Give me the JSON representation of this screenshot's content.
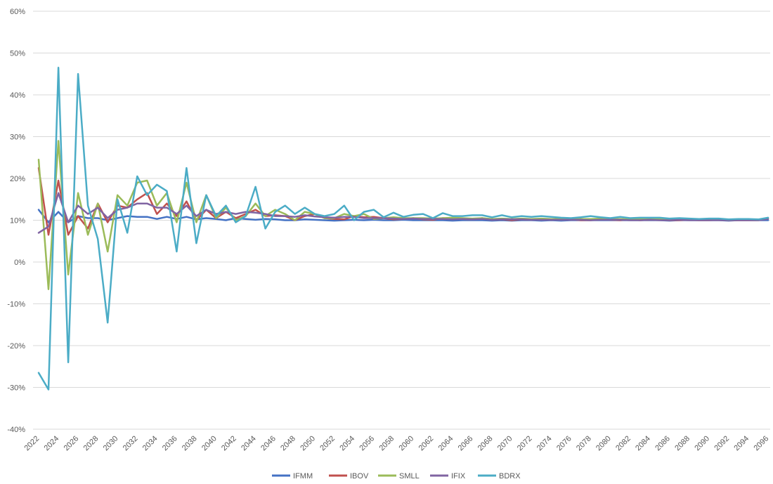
{
  "chart_data": {
    "type": "line",
    "title": "",
    "xlabel": "",
    "ylabel": "",
    "ylim": [
      -40,
      60
    ],
    "y_ticks": [
      "60%",
      "50%",
      "40%",
      "30%",
      "20%",
      "10%",
      "0%",
      "-10%",
      "-20%",
      "-30%",
      "-40%"
    ],
    "y_tick_values": [
      60,
      50,
      40,
      30,
      20,
      10,
      0,
      -10,
      -20,
      -30,
      -40
    ],
    "x_tick_labels": [
      "2022",
      "2024",
      "2026",
      "2028",
      "2030",
      "2032",
      "2034",
      "2036",
      "2038",
      "2040",
      "2042",
      "2044",
      "2046",
      "2048",
      "2050",
      "2052",
      "2054",
      "2056",
      "2058",
      "2060",
      "2062",
      "2064",
      "2066",
      "2068",
      "2070",
      "2072",
      "2074",
      "2076",
      "2078",
      "2080",
      "2082",
      "2084",
      "2086",
      "2088",
      "2090",
      "2092",
      "2094",
      "2096"
    ],
    "grid": true,
    "legend_position": "bottom",
    "x_start": 2022,
    "series": [
      {
        "name": "IFMM",
        "color": "#4472C4",
        "values": [
          12.5,
          9.5,
          12,
          9.5,
          11,
          10.5,
          10.5,
          10,
          10.5,
          11,
          10.8,
          10.8,
          10.3,
          10.8,
          10.3,
          10.8,
          10.2,
          10.5,
          10.3,
          10,
          10.5,
          10.3,
          10.1,
          10.3,
          10.2,
          10,
          10,
          10.2,
          10.1,
          10,
          9.9,
          10,
          10.1,
          10,
          10.1,
          10,
          10,
          10.1,
          10,
          10,
          10,
          10,
          9.9,
          10,
          10,
          10,
          9.9,
          10,
          9.9,
          10,
          10,
          9.9,
          10,
          9.9,
          10,
          10,
          10,
          10,
          10,
          10,
          10,
          10,
          10,
          10,
          9.9,
          10,
          10,
          10,
          10,
          10,
          9.9,
          10,
          10,
          10,
          10
        ]
      },
      {
        "name": "IBOV",
        "color": "#C0504D",
        "values": [
          22.5,
          6.5,
          19.5,
          6.5,
          11,
          8,
          14,
          9.5,
          13.5,
          13,
          15,
          16.5,
          11.5,
          14,
          11,
          14.5,
          10,
          12.5,
          10.5,
          12,
          10.5,
          11.5,
          12.5,
          11,
          11.2,
          11,
          10,
          11,
          11.5,
          10.5,
          10.3,
          10.2,
          11,
          10.7,
          10.8,
          10.5,
          10.2,
          10.3,
          10.5,
          10.2,
          10.1,
          10.5,
          10.3,
          10.3,
          10.2,
          10.5,
          10.1,
          10.2,
          10,
          10.2,
          10.1,
          10.3,
          10.1,
          10.2,
          10.2,
          10,
          10,
          10.2,
          10.1,
          10,
          10.2,
          10,
          10.1,
          10.1,
          10,
          10,
          10.1,
          10,
          10,
          10.1,
          10,
          10,
          10,
          10,
          10.5
        ]
      },
      {
        "name": "SMLL",
        "color": "#9BBB59",
        "values": [
          24.5,
          -6.5,
          29,
          -3,
          16.5,
          6.5,
          14,
          2.5,
          16,
          13.5,
          19,
          19.5,
          13.5,
          16.5,
          9.5,
          19,
          9.5,
          16,
          10.5,
          13,
          10,
          11,
          14,
          11,
          12.5,
          11.5,
          10,
          12,
          11.5,
          10.5,
          10.5,
          11.5,
          11,
          11.5,
          10.3,
          10.5,
          10.7,
          10.5,
          10.5,
          10.5,
          10.4,
          10.5,
          10.6,
          10.5,
          10.4,
          10.5,
          10.3,
          10.4,
          10.3,
          10.4,
          10.3,
          10.4,
          10.3,
          10.3,
          10.2,
          10.3,
          10.3,
          10.4,
          10.2,
          10.3,
          10.2,
          10.2,
          10.2,
          10.2,
          10.1,
          10.2,
          10.1,
          10.2,
          10.1,
          10.1,
          10.1,
          10.1,
          10.1,
          10.1,
          10.5
        ]
      },
      {
        "name": "IFIX",
        "color": "#8064A2",
        "values": [
          7,
          8.5,
          16.5,
          9.5,
          13.5,
          11.5,
          13,
          10.5,
          12.5,
          13,
          14,
          14,
          13,
          13,
          11.5,
          13.5,
          11,
          12.5,
          11.5,
          12,
          11.5,
          12,
          11.8,
          11.5,
          11,
          11,
          10.8,
          11.2,
          10.9,
          10.7,
          10.6,
          10.8,
          10.8,
          10.5,
          10.5,
          10.5,
          10.4,
          10.3,
          10.4,
          10.3,
          10.3,
          10.3,
          10.2,
          10.3,
          10.2,
          10.3,
          10.1,
          10.2,
          10.2,
          10.2,
          10.1,
          10.1,
          10.1,
          10.1,
          10.1,
          10.1,
          10,
          10.1,
          10.1,
          10.1,
          10,
          10,
          10.1,
          10,
          10,
          10.1,
          10,
          10,
          10,
          10,
          10,
          10,
          10,
          10,
          10.3
        ]
      },
      {
        "name": "BDRX",
        "color": "#4BACC6",
        "values": [
          -26.5,
          -30.5,
          46.5,
          -24,
          45,
          13.5,
          5.5,
          -14.5,
          15,
          7,
          20.5,
          16,
          18.5,
          17,
          2.5,
          22.5,
          4.5,
          16,
          11,
          13.5,
          9.5,
          11,
          18,
          8,
          12,
          13.5,
          11.5,
          13,
          11.5,
          11,
          11.5,
          13.5,
          10,
          12,
          12.5,
          10.7,
          11.8,
          10.8,
          11.3,
          11.5,
          10.5,
          11.7,
          11,
          11,
          11.2,
          11.2,
          10.7,
          11.2,
          10.7,
          11,
          10.8,
          11,
          10.8,
          10.6,
          10.5,
          10.7,
          11,
          10.7,
          10.5,
          10.8,
          10.5,
          10.6,
          10.6,
          10.6,
          10.4,
          10.5,
          10.4,
          10.3,
          10.4,
          10.4,
          10.2,
          10.3,
          10.3,
          10.2,
          10.6
        ]
      }
    ]
  }
}
